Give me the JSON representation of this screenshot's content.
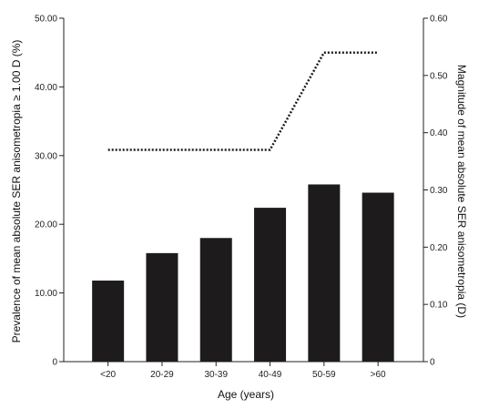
{
  "chart_data": {
    "type": "bar",
    "categories": [
      "<20",
      "20-29",
      "30-39",
      "40-49",
      "50-59",
      ">60"
    ],
    "series": [
      {
        "type": "bar",
        "axis": "left",
        "color": "#1e1b1c",
        "values": [
          11.8,
          15.8,
          18.0,
          22.4,
          25.8,
          24.6
        ]
      },
      {
        "type": "line",
        "axis": "right",
        "style": "dotted",
        "color": "#1e1b1c",
        "values": [
          0.37,
          0.37,
          0.37,
          0.37,
          0.54,
          0.54
        ]
      }
    ],
    "xlabel": "Age (years)",
    "ylabel": "Prevalence of mean absolute SER anisometropia ≥ 1.00 D (%)",
    "y2label": "Magnitude of mean absolute SER anisometropia (D)",
    "ylim": [
      0,
      50
    ],
    "y2lim": [
      0,
      0.6
    ],
    "yticks": [
      "0",
      "10.00",
      "20.00",
      "30.00",
      "40.00",
      "50.00"
    ],
    "y2ticks": [
      "0",
      "0.10",
      "0.20",
      "0.30",
      "0.40",
      "0.50",
      "0.60"
    ],
    "grid": false,
    "legend": "none"
  }
}
